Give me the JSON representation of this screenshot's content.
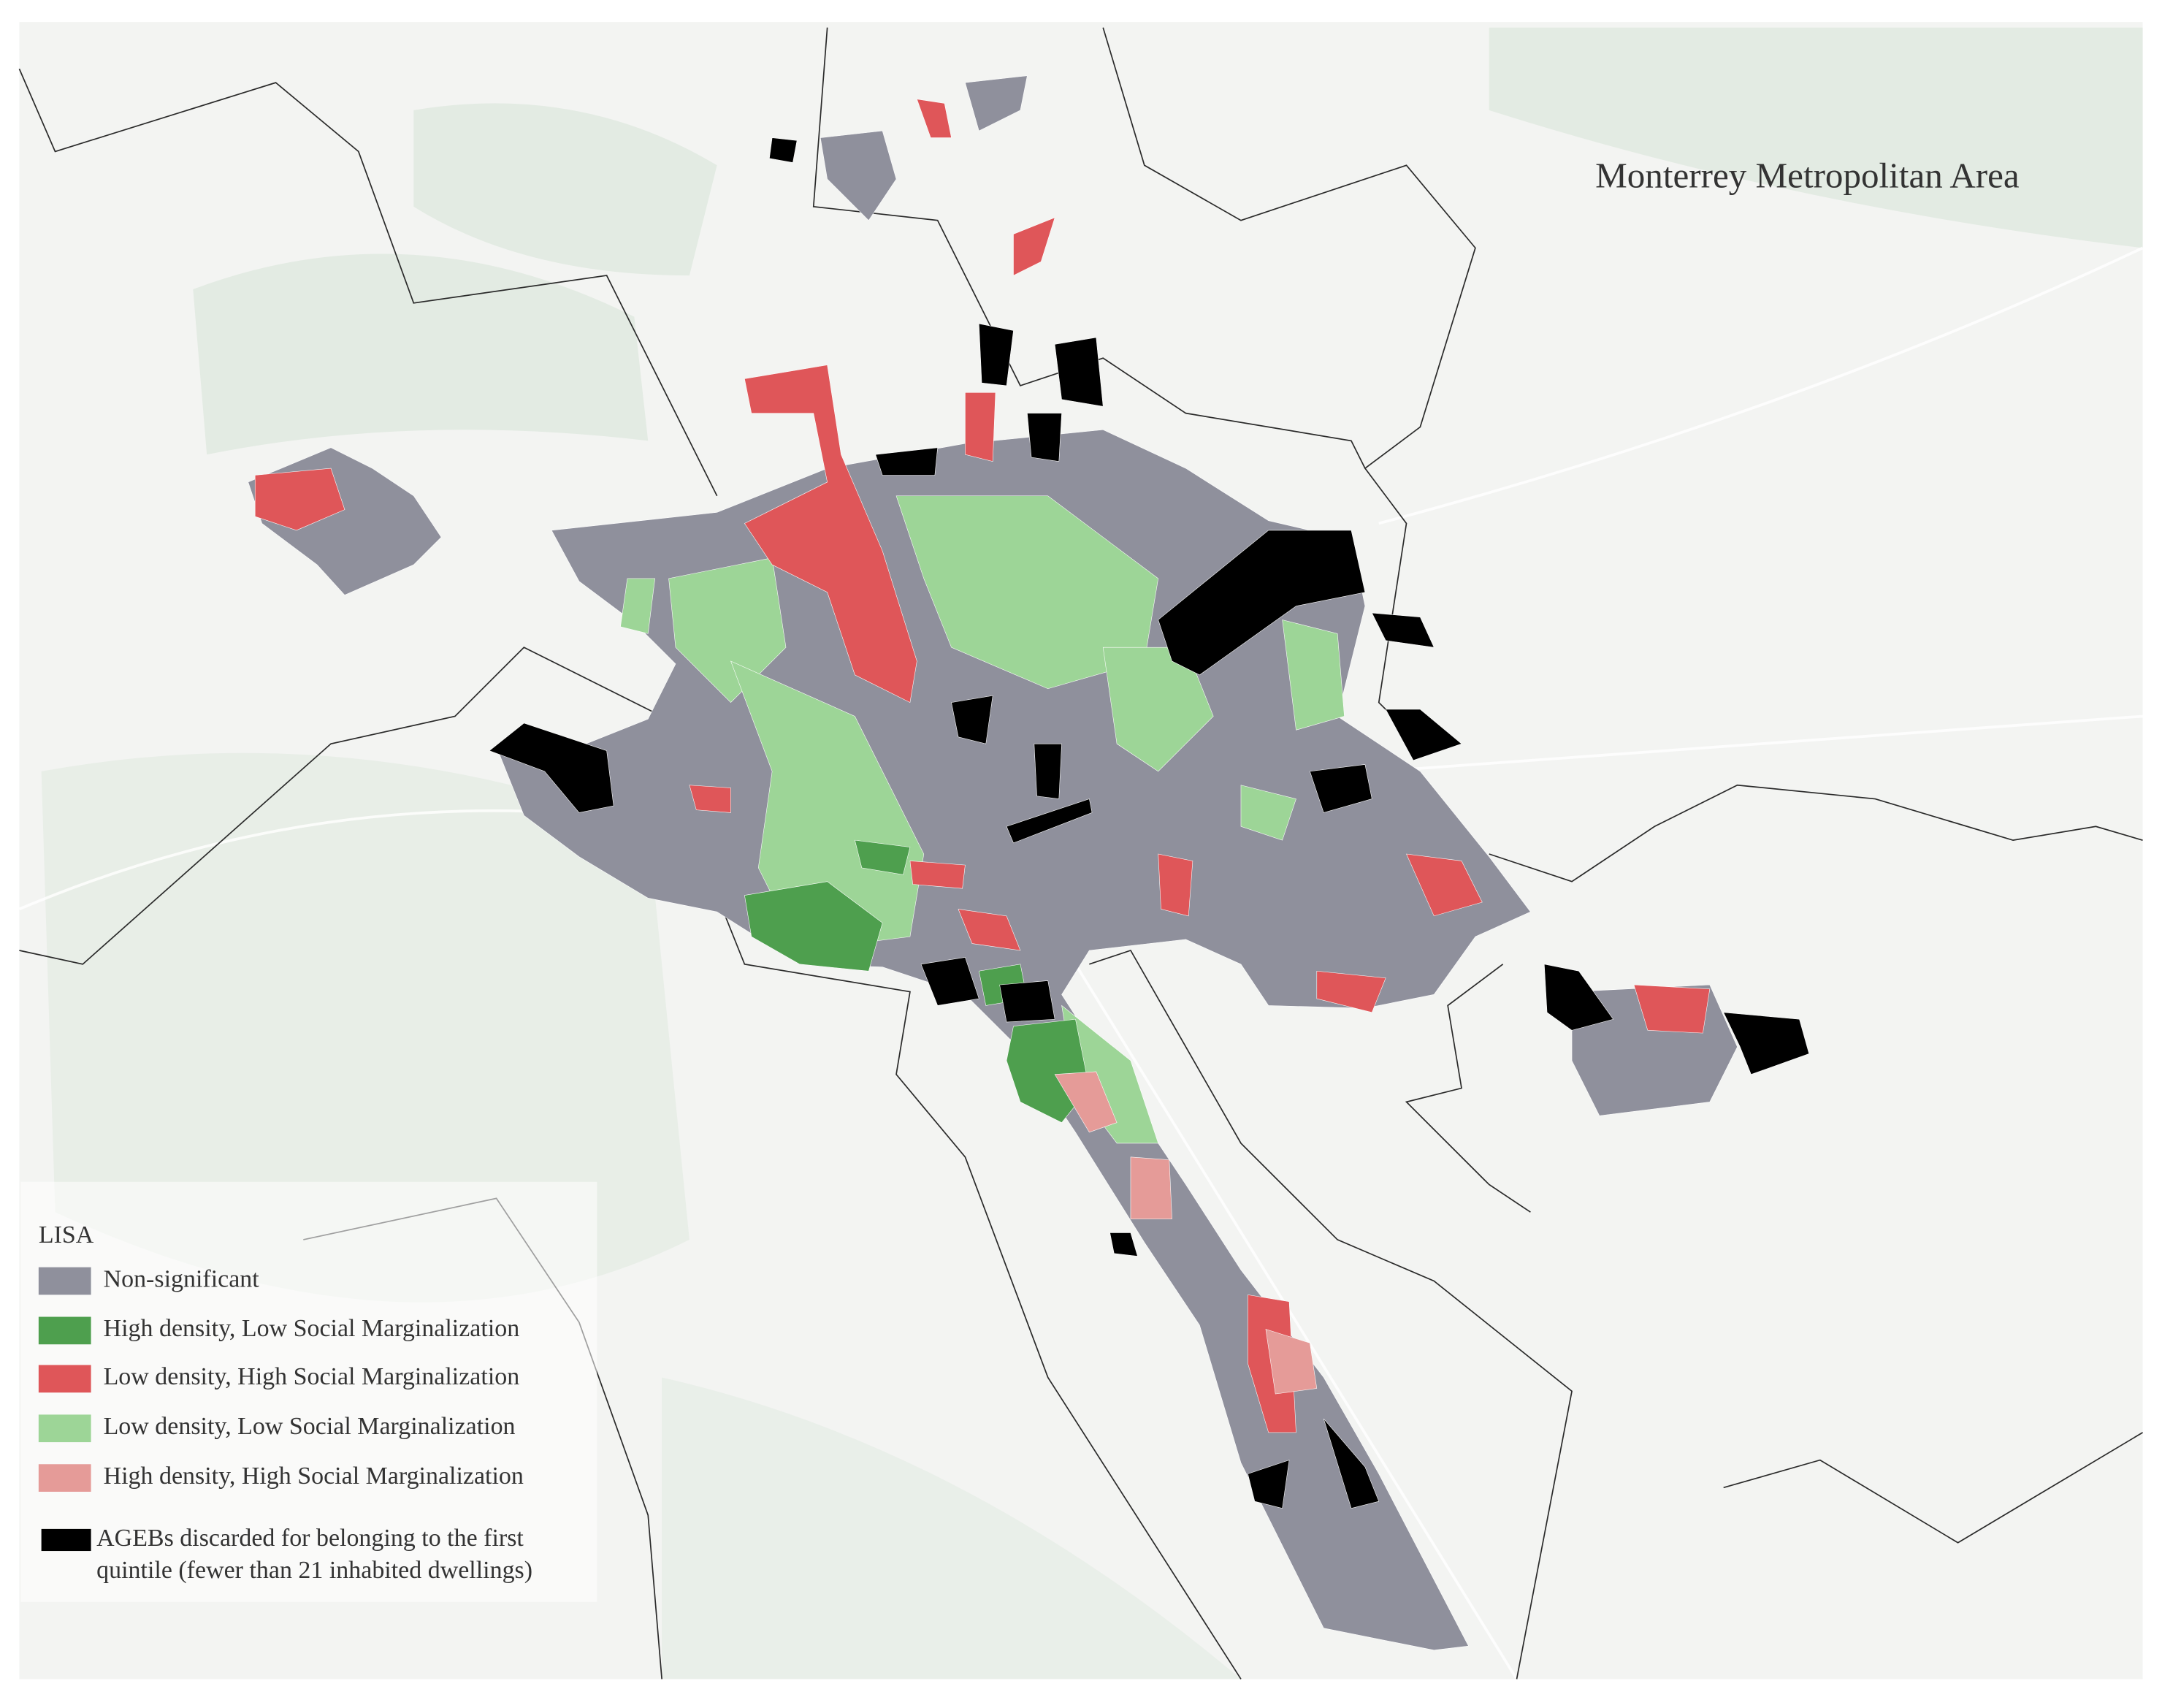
{
  "map": {
    "title": "Monterrey Metropolitan Area",
    "legend": {
      "title": "LISA",
      "items": [
        {
          "label": "Non-significant",
          "color": "#8f909c"
        },
        {
          "label": "High density, Low Social Marginalization",
          "color": "#4e9f4e"
        },
        {
          "label": "Low density, High Social Marginalization",
          "color": "#df5659"
        },
        {
          "label": "Low density, Low Social Marginalization",
          "color": "#9dd597"
        },
        {
          "label": "High density, High Social Marginalization",
          "color": "#e59b98"
        },
        {
          "label": "AGEBs discarded for belonging to the first\nquintile (fewer than 21 inhabited dwellings)",
          "color": "#000000"
        }
      ]
    }
  }
}
